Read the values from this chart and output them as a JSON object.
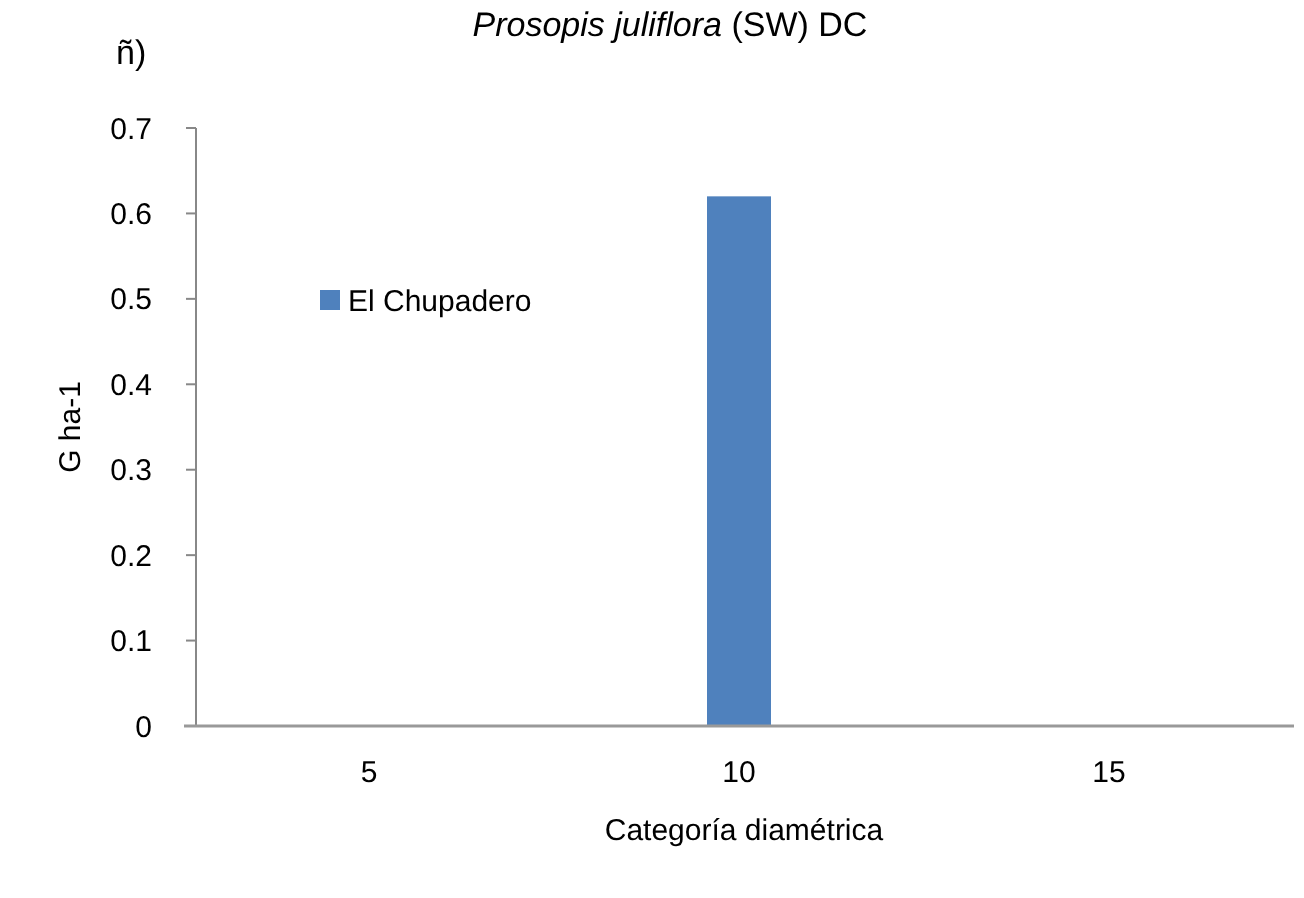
{
  "chart_data": {
    "type": "bar",
    "title": "Prosopis juliflora (SW) DC",
    "subtitle": "ñ)",
    "xlabel": "Categoría diamétrica",
    "ylabel": "G ha-1",
    "categories": [
      "5",
      "10",
      "15"
    ],
    "series": [
      {
        "name": "El Chupadero",
        "color": "#4f81bd",
        "values": [
          0,
          0.62,
          0
        ]
      }
    ],
    "ylim": [
      0,
      0.7
    ],
    "yticks": [
      0,
      0.1,
      0.2,
      0.3,
      0.4,
      0.5,
      0.6,
      0.7
    ],
    "legend": "top left",
    "grid": false
  }
}
